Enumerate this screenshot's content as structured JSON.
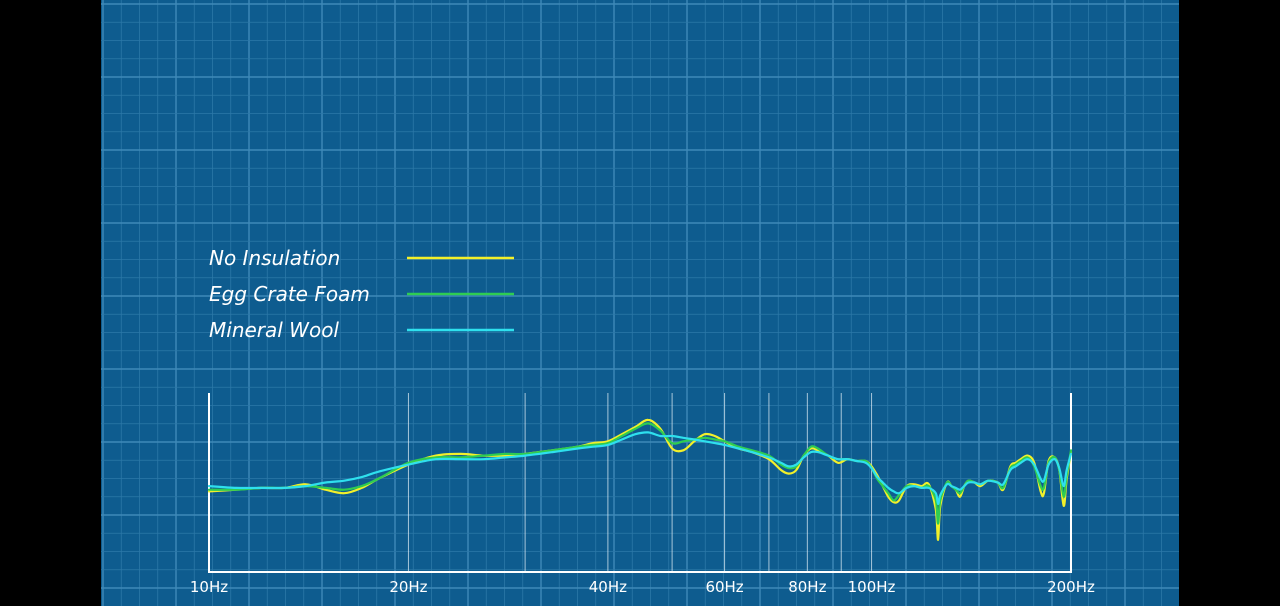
{
  "colors": {
    "background": "#0e5c8f",
    "grid_minor": "#2c78a8",
    "grid_major": "#3f89b8",
    "axis": "#ffffff",
    "letterbox": "#000000"
  },
  "chart_data": {
    "type": "line",
    "title": "",
    "xlabel": "",
    "ylabel": "",
    "x_scale": "log",
    "xlim": [
      10,
      200
    ],
    "ylim": [
      0,
      100
    ],
    "x_ticks": [
      {
        "value": 10,
        "label": "10Hz"
      },
      {
        "value": 20,
        "label": "20Hz"
      },
      {
        "value": 40,
        "label": "40Hz"
      },
      {
        "value": 60,
        "label": "60Hz"
      },
      {
        "value": 80,
        "label": "80Hz"
      },
      {
        "value": 100,
        "label": "100Hz"
      },
      {
        "value": 200,
        "label": "200Hz"
      }
    ],
    "x_gridlines": [
      20,
      30,
      40,
      50,
      60,
      70,
      80,
      90,
      100
    ],
    "grid": true,
    "legend_position": "top-left",
    "series": [
      {
        "name": "No Insulation",
        "color": "#f2f02a",
        "points": [
          [
            10,
            45
          ],
          [
            11,
            46
          ],
          [
            12,
            47
          ],
          [
            13,
            47
          ],
          [
            14,
            49
          ],
          [
            15,
            46
          ],
          [
            16,
            44
          ],
          [
            17,
            47
          ],
          [
            18,
            52
          ],
          [
            20,
            60
          ],
          [
            22,
            65
          ],
          [
            24,
            66
          ],
          [
            26,
            65
          ],
          [
            28,
            65
          ],
          [
            30,
            66
          ],
          [
            33,
            68
          ],
          [
            36,
            70
          ],
          [
            38,
            72
          ],
          [
            40,
            73
          ],
          [
            42,
            77
          ],
          [
            44,
            81
          ],
          [
            46,
            85
          ],
          [
            48,
            80
          ],
          [
            50,
            69
          ],
          [
            52,
            68
          ],
          [
            54,
            73
          ],
          [
            56,
            77
          ],
          [
            58,
            76
          ],
          [
            60,
            73
          ],
          [
            63,
            69
          ],
          [
            66,
            67
          ],
          [
            70,
            63
          ],
          [
            73,
            57
          ],
          [
            75,
            55
          ],
          [
            77,
            57
          ],
          [
            79,
            65
          ],
          [
            81,
            69
          ],
          [
            83,
            68
          ],
          [
            86,
            65
          ],
          [
            89,
            61
          ],
          [
            92,
            63
          ],
          [
            95,
            62
          ],
          [
            98,
            62
          ],
          [
            100,
            59
          ],
          [
            102,
            54
          ],
          [
            104,
            48
          ],
          [
            106,
            42
          ],
          [
            108,
            39
          ],
          [
            110,
            40
          ],
          [
            113,
            48
          ],
          [
            116,
            49
          ],
          [
            119,
            48
          ],
          [
            122,
            49
          ],
          [
            125,
            35
          ],
          [
            126,
            18
          ],
          [
            127,
            37
          ],
          [
            130,
            50
          ],
          [
            132,
            48
          ],
          [
            134,
            46
          ],
          [
            136,
            42
          ],
          [
            138,
            48
          ],
          [
            140,
            51
          ],
          [
            143,
            50
          ],
          [
            146,
            48
          ],
          [
            150,
            51
          ],
          [
            155,
            50
          ],
          [
            158,
            46
          ],
          [
            162,
            59
          ],
          [
            165,
            61
          ],
          [
            168,
            63
          ],
          [
            172,
            65
          ],
          [
            176,
            61
          ],
          [
            180,
            45
          ],
          [
            182,
            44
          ],
          [
            185,
            62
          ],
          [
            189,
            64
          ],
          [
            192,
            57
          ],
          [
            195,
            37
          ],
          [
            197,
            52
          ],
          [
            200,
            67
          ]
        ]
      },
      {
        "name": "Egg Crate Foam",
        "color": "#2ecc52",
        "points": [
          [
            10,
            46
          ],
          [
            11,
            46
          ],
          [
            12,
            47
          ],
          [
            13,
            47
          ],
          [
            14,
            48
          ],
          [
            15,
            47
          ],
          [
            16,
            46
          ],
          [
            17,
            48
          ],
          [
            18,
            52
          ],
          [
            20,
            61
          ],
          [
            22,
            64
          ],
          [
            24,
            64
          ],
          [
            26,
            65
          ],
          [
            28,
            66
          ],
          [
            30,
            66
          ],
          [
            33,
            68
          ],
          [
            36,
            70
          ],
          [
            38,
            71
          ],
          [
            40,
            72
          ],
          [
            42,
            76
          ],
          [
            44,
            80
          ],
          [
            46,
            83
          ],
          [
            48,
            79
          ],
          [
            50,
            72
          ],
          [
            52,
            73
          ],
          [
            54,
            74
          ],
          [
            56,
            75
          ],
          [
            58,
            74
          ],
          [
            60,
            73
          ],
          [
            63,
            70
          ],
          [
            66,
            68
          ],
          [
            70,
            65
          ],
          [
            73,
            60
          ],
          [
            75,
            58
          ],
          [
            77,
            59
          ],
          [
            79,
            65
          ],
          [
            81,
            70
          ],
          [
            83,
            69
          ],
          [
            86,
            65
          ],
          [
            89,
            63
          ],
          [
            92,
            63
          ],
          [
            95,
            62
          ],
          [
            98,
            62
          ],
          [
            100,
            58
          ],
          [
            102,
            52
          ],
          [
            104,
            48
          ],
          [
            106,
            44
          ],
          [
            108,
            40
          ],
          [
            110,
            43
          ],
          [
            113,
            48
          ],
          [
            116,
            48
          ],
          [
            119,
            47
          ],
          [
            122,
            48
          ],
          [
            125,
            40
          ],
          [
            126,
            27
          ],
          [
            127,
            40
          ],
          [
            130,
            50
          ],
          [
            132,
            48
          ],
          [
            134,
            46
          ],
          [
            136,
            44
          ],
          [
            138,
            48
          ],
          [
            140,
            51
          ],
          [
            143,
            50
          ],
          [
            146,
            49
          ],
          [
            150,
            51
          ],
          [
            155,
            50
          ],
          [
            158,
            47
          ],
          [
            162,
            58
          ],
          [
            165,
            60
          ],
          [
            168,
            62
          ],
          [
            172,
            64
          ],
          [
            176,
            59
          ],
          [
            180,
            48
          ],
          [
            182,
            47
          ],
          [
            185,
            61
          ],
          [
            189,
            64
          ],
          [
            192,
            57
          ],
          [
            195,
            42
          ],
          [
            197,
            54
          ],
          [
            200,
            68
          ]
        ]
      },
      {
        "name": "Mineral Wool",
        "color": "#2ee0ee",
        "points": [
          [
            10,
            48
          ],
          [
            11,
            47
          ],
          [
            12,
            47
          ],
          [
            13,
            47
          ],
          [
            14,
            48
          ],
          [
            15,
            50
          ],
          [
            16,
            51
          ],
          [
            17,
            53
          ],
          [
            18,
            56
          ],
          [
            20,
            60
          ],
          [
            22,
            63
          ],
          [
            24,
            63
          ],
          [
            26,
            63
          ],
          [
            28,
            64
          ],
          [
            30,
            65
          ],
          [
            33,
            67
          ],
          [
            36,
            69
          ],
          [
            38,
            70
          ],
          [
            40,
            71
          ],
          [
            42,
            74
          ],
          [
            44,
            77
          ],
          [
            46,
            78
          ],
          [
            48,
            76
          ],
          [
            50,
            76
          ],
          [
            52,
            75
          ],
          [
            54,
            74
          ],
          [
            56,
            73
          ],
          [
            58,
            72
          ],
          [
            60,
            71
          ],
          [
            63,
            69
          ],
          [
            66,
            67
          ],
          [
            70,
            64
          ],
          [
            73,
            61
          ],
          [
            75,
            59
          ],
          [
            77,
            60
          ],
          [
            79,
            64
          ],
          [
            81,
            67
          ],
          [
            83,
            67
          ],
          [
            86,
            65
          ],
          [
            89,
            63
          ],
          [
            92,
            63
          ],
          [
            95,
            62
          ],
          [
            98,
            61
          ],
          [
            100,
            58
          ],
          [
            102,
            53
          ],
          [
            104,
            50
          ],
          [
            106,
            47
          ],
          [
            108,
            45
          ],
          [
            110,
            44
          ],
          [
            113,
            47
          ],
          [
            116,
            48
          ],
          [
            119,
            47
          ],
          [
            122,
            47
          ],
          [
            125,
            44
          ],
          [
            126,
            38
          ],
          [
            127,
            43
          ],
          [
            130,
            49
          ],
          [
            132,
            48
          ],
          [
            134,
            47
          ],
          [
            136,
            46
          ],
          [
            138,
            48
          ],
          [
            140,
            50
          ],
          [
            143,
            50
          ],
          [
            146,
            49
          ],
          [
            150,
            51
          ],
          [
            155,
            50
          ],
          [
            158,
            49
          ],
          [
            162,
            57
          ],
          [
            165,
            59
          ],
          [
            168,
            61
          ],
          [
            172,
            63
          ],
          [
            176,
            60
          ],
          [
            180,
            52
          ],
          [
            182,
            51
          ],
          [
            185,
            60
          ],
          [
            189,
            63
          ],
          [
            192,
            58
          ],
          [
            195,
            48
          ],
          [
            197,
            57
          ],
          [
            200,
            66
          ]
        ]
      }
    ]
  }
}
